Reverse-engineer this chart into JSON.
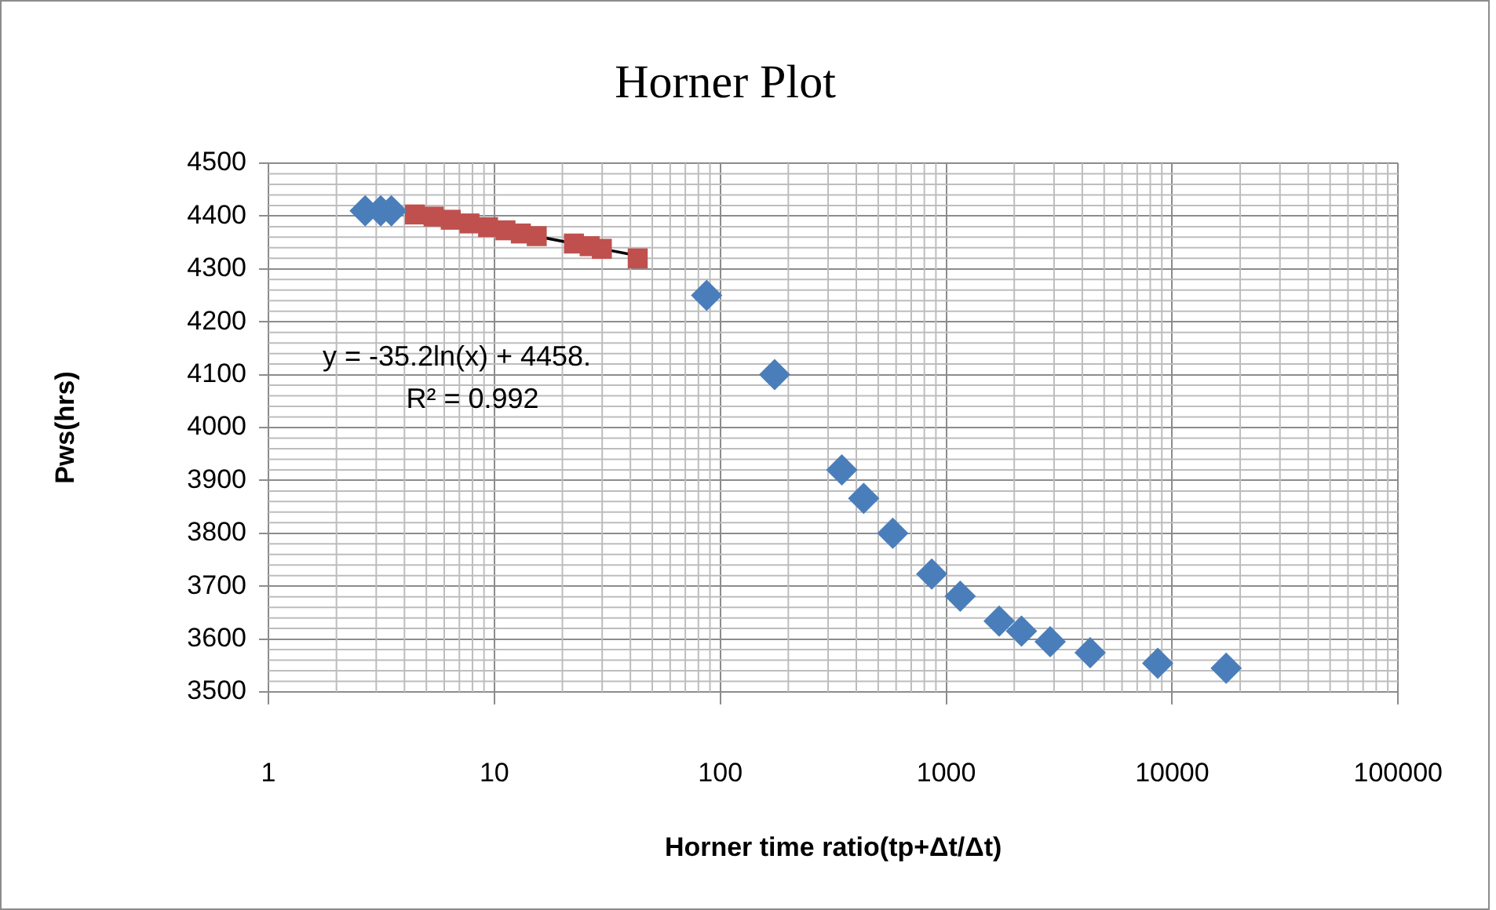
{
  "chart_data": {
    "type": "scatter",
    "title": "Horner Plot",
    "xlabel": "Horner time ratio(tp+Δt/Δt)",
    "ylabel": "Pws(hrs)",
    "log": "x",
    "xlim": [
      1,
      100000
    ],
    "xticks": [
      1,
      10,
      100,
      1000,
      10000,
      100000
    ],
    "ylim": [
      3500,
      4500
    ],
    "yticks": [
      3500,
      3600,
      3700,
      3800,
      3900,
      4000,
      4100,
      4200,
      4300,
      4400,
      4500
    ],
    "grid": true,
    "legend": false,
    "series": [
      {
        "color": "#4a7ebb",
        "marker": "diamond",
        "x": [
          2.68,
          3.14,
          3.5,
          87,
          174,
          345,
          431,
          580,
          863,
          1153,
          1715,
          2153,
          2884,
          4335,
          8630,
          17340
        ],
        "values": [
          4410,
          4410,
          4410,
          4250,
          4100,
          3920,
          3866,
          3800,
          3723,
          3681,
          3634,
          3615,
          3595,
          3574,
          3554,
          3545
        ]
      },
      {
        "color": "#c0504d",
        "marker": "square",
        "x": [
          4.45,
          5.38,
          6.41,
          7.76,
          9.38,
          11.2,
          13.1,
          15.4,
          22.5,
          26.4,
          29.9,
          43.1
        ],
        "values": [
          4403,
          4399,
          4393,
          4386,
          4379,
          4373,
          4367,
          4362,
          4348,
          4343,
          4338,
          4320
        ]
      },
      {
        "type": "line",
        "color": "#000000",
        "marker": "none",
        "x": [
          4.8,
          43.1
        ],
        "values": [
          4403,
          4325
        ]
      }
    ],
    "annotations": [
      "y = -35.2ln(x) + 4458.",
      "R² = 0.992"
    ]
  }
}
